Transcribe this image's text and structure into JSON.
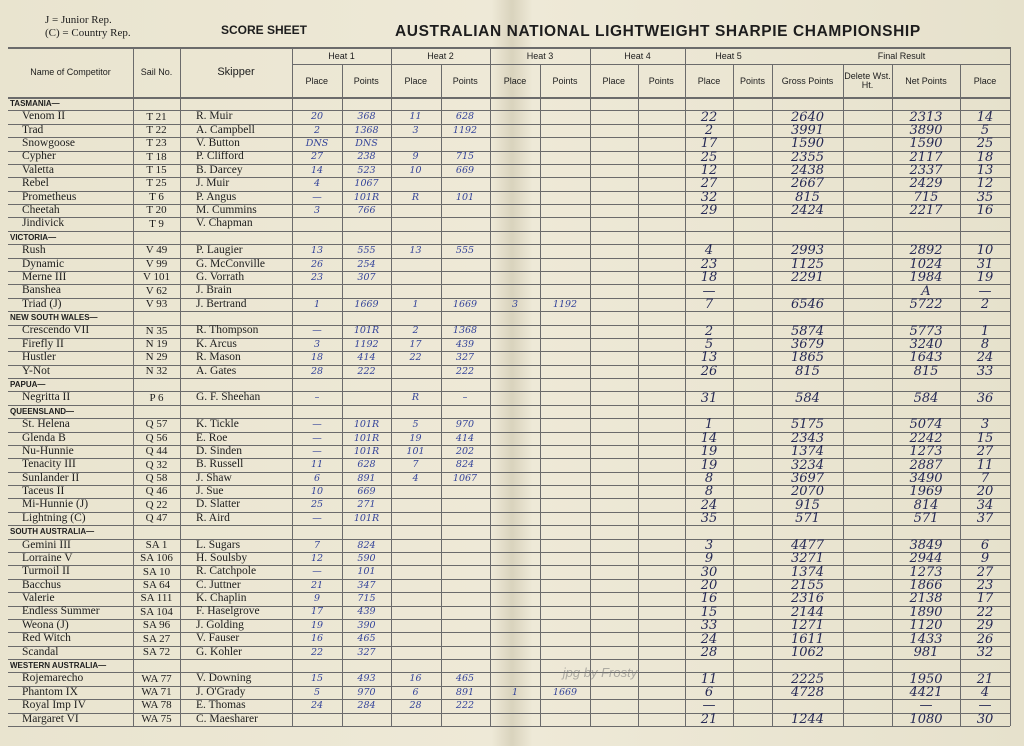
{
  "header": {
    "legend_junior": "J = Junior Rep.",
    "legend_country": "(C) = Country Rep.",
    "label": "SCORE SHEET",
    "title": "AUSTRALIAN NATIONAL LIGHTWEIGHT SHARPIE CHAMPIONSHIP"
  },
  "columns": {
    "name": "Name of Competitor",
    "sail": "Sail No.",
    "skipper": "Skipper",
    "heats": [
      {
        "name": "Heat 1",
        "place": "Place",
        "points": "Points"
      },
      {
        "name": "Heat 2",
        "place": "Place",
        "points": "Points"
      },
      {
        "name": "Heat 3",
        "place": "Place",
        "points": "Points"
      },
      {
        "name": "Heat 4",
        "place": "Place",
        "points": "Points"
      },
      {
        "name": "Heat 5",
        "place": "Place",
        "points": "Points"
      }
    ],
    "final": {
      "title": "Final Result",
      "gross": "Gross Points",
      "delete": "Delete Wst. Ht.",
      "net": "Net Points",
      "place": "Place"
    }
  },
  "sections": [
    {
      "name": "TASMANIA—",
      "boats": [
        {
          "name": "Venom II",
          "sail": "T 21",
          "skipper": "R. Muir",
          "heat1_place": 20,
          "heat1_points": 368,
          "heat2_place": 11,
          "heat2_points": 628,
          "heat5_place": 22,
          "gross": 2640,
          "net": 2313,
          "place": 14
        },
        {
          "name": "Trad",
          "sail": "T 22",
          "skipper": "A. Campbell",
          "heat1_place": 2,
          "heat1_points": 1368,
          "heat2_place": 3,
          "heat2_points": 1192,
          "heat5_place": 2,
          "gross": 3991,
          "net": 3890,
          "place": 5
        },
        {
          "name": "Snowgoose",
          "sail": "T 23",
          "skipper": "V. Button",
          "heat1_place": "DNS",
          "heat1_points": "DNS",
          "heat5_place": 17,
          "gross": 1590,
          "net": 1590,
          "place": 25
        },
        {
          "name": "Cypher",
          "sail": "T 18",
          "skipper": "P. Clifford",
          "heat1_place": 27,
          "heat1_points": 238,
          "heat2_place": 9,
          "heat2_points": 715,
          "heat5_place": 25,
          "gross": 2355,
          "net": 2117,
          "place": 18
        },
        {
          "name": "Valetta",
          "sail": "T 15",
          "skipper": "B. Darcey",
          "heat1_place": 14,
          "heat1_points": 523,
          "heat2_place": 10,
          "heat2_points": 669,
          "heat5_place": 12,
          "gross": 2438,
          "net": 2337,
          "place": 13
        },
        {
          "name": "Rebel",
          "sail": "T 25",
          "skipper": "J. Muir",
          "heat1_place": 4,
          "heat1_points": 1067,
          "heat5_place": 27,
          "gross": 2667,
          "net": 2429,
          "place": 12
        },
        {
          "name": "Prometheus",
          "sail": "T 6",
          "skipper": "P. Angus",
          "heat1_place": "—",
          "heat1_points": "101R",
          "heat2_place": "R",
          "heat2_points": 101,
          "heat5_place": 32,
          "gross": 815,
          "net": 715,
          "place": 35
        },
        {
          "name": "Cheetah",
          "sail": "T 20",
          "skipper": "M. Cummins",
          "heat1_place": 3,
          "heat1_points": 766,
          "heat5_place": 29,
          "gross": 2424,
          "net": 2217,
          "place": 16
        },
        {
          "name": "Jindivick",
          "sail": "T 9",
          "skipper": "V. Chapman"
        }
      ]
    },
    {
      "name": "VICTORIA—",
      "boats": [
        {
          "name": "Rush",
          "sail": "V 49",
          "skipper": "P. Laugier",
          "heat1_place": 13,
          "heat1_points": 555,
          "heat2_place": 13,
          "heat2_points": 555,
          "heat5_place": 4,
          "gross": 2993,
          "net": 2892,
          "place": 10
        },
        {
          "name": "Dynamic",
          "sail": "V 99",
          "skipper": "G. McConville",
          "heat1_place": 26,
          "heat1_points": 254,
          "heat5_place": 23,
          "gross": 1125,
          "net": 1024,
          "place": 31
        },
        {
          "name": "Merne III",
          "sail": "V 101",
          "skipper": "G. Vorrath",
          "heat1_place": 23,
          "heat1_points": 307,
          "heat5_place": 18,
          "gross": 2291,
          "net": 1984,
          "place": 19
        },
        {
          "name": "Banshea",
          "sail": "V 62",
          "skipper": "J. Brain",
          "heat5_place": "—",
          "net": "A",
          "place": "—"
        },
        {
          "name": "Triad (J)",
          "sail": "V 93",
          "skipper": "J. Bertrand",
          "heat1_place": 1,
          "heat1_points": 1669,
          "heat2_place": 1,
          "heat2_points": 1669,
          "heat3_place": 3,
          "heat3_points": 1192,
          "heat5_place": 7,
          "gross": 6546,
          "net": 5722,
          "place": 2
        }
      ]
    },
    {
      "name": "NEW SOUTH WALES—",
      "boats": [
        {
          "name": "Crescendo VII",
          "sail": "N 35",
          "skipper": "R. Thompson",
          "heat1_place": "—",
          "heat1_points": "101R",
          "heat2_place": 2,
          "heat2_points": 1368,
          "heat5_place": 2,
          "gross": 5874,
          "net": 5773,
          "place": 1
        },
        {
          "name": "Firefly II",
          "sail": "N 19",
          "skipper": "K. Arcus",
          "heat1_place": 3,
          "heat1_points": 1192,
          "heat2_place": 17,
          "heat2_points": 439,
          "heat5_place": 5,
          "gross": 3679,
          "net": 3240,
          "place": 8
        },
        {
          "name": "Hustler",
          "sail": "N 29",
          "skipper": "R. Mason",
          "heat1_place": 18,
          "heat1_points": 414,
          "heat2_place": 22,
          "heat2_points": 327,
          "heat5_place": 13,
          "gross": 1865,
          "net": 1643,
          "place": 24
        },
        {
          "name": "Y-Not",
          "sail": "N 32",
          "skipper": "A. Gates",
          "heat1_place": 28,
          "heat1_points": 222,
          "heat2_points": 222,
          "heat5_place": 26,
          "gross": 815,
          "net": 815,
          "place": 33
        }
      ]
    },
    {
      "name": "PAPUA—",
      "boats": [
        {
          "name": "Negritta II",
          "sail": "P 6",
          "skipper": "G. F. Sheehan",
          "heat1_place": "–",
          "heat2_place": "R",
          "heat2_points": "–",
          "heat5_place": 31,
          "gross": 584,
          "net": 584,
          "place": 36
        }
      ]
    },
    {
      "name": "QUEENSLAND—",
      "boats": [
        {
          "name": "St. Helena",
          "sail": "Q 57",
          "skipper": "K. Tickle",
          "heat1_place": "—",
          "heat1_points": "101R",
          "heat2_place": 5,
          "heat2_points": 970,
          "heat5_place": 1,
          "gross": 5175,
          "net": 5074,
          "place": 3
        },
        {
          "name": "Glenda B",
          "sail": "Q 56",
          "skipper": "E. Roe",
          "heat1_place": "—",
          "heat1_points": "101R",
          "heat2_place": 19,
          "heat2_points": 414,
          "heat5_place": 14,
          "gross": 2343,
          "net": 2242,
          "place": 15
        },
        {
          "name": "Nu-Hunnie",
          "sail": "Q 44",
          "skipper": "D. Sinden",
          "heat1_place": "—",
          "heat1_points": "101R",
          "heat2_place": 101,
          "heat2_points": 202,
          "heat5_place": 19,
          "gross": 1374,
          "net": 1273,
          "place": 27
        },
        {
          "name": "Tenacity III",
          "sail": "Q 32",
          "skipper": "B. Russell",
          "heat1_place": 11,
          "heat1_points": 628,
          "heat2_place": 7,
          "heat2_points": 824,
          "heat5_place": 19,
          "gross": 3234,
          "net": 2887,
          "place": 11
        },
        {
          "name": "Sunlander II",
          "sail": "Q 58",
          "skipper": "J. Shaw",
          "heat1_place": 6,
          "heat1_points": 891,
          "heat2_place": 4,
          "heat2_points": 1067,
          "heat5_place": 8,
          "gross": 3697,
          "net": 3490,
          "place": 7
        },
        {
          "name": "Taceus II",
          "sail": "Q 46",
          "skipper": "J. Sue",
          "heat1_place": 10,
          "heat1_points": 669,
          "heat5_place": 8,
          "gross": 2070,
          "net": 1969,
          "place": 20
        },
        {
          "name": "Mi-Hunnie (J)",
          "sail": "Q 22",
          "skipper": "D. Slatter",
          "heat1_place": 25,
          "heat1_points": 271,
          "heat5_place": 24,
          "gross": 915,
          "net": 814,
          "place": 34
        },
        {
          "name": "Lightning (C)",
          "sail": "Q 47",
          "skipper": "R. Aird",
          "heat1_place": "—",
          "heat1_points": "101R",
          "heat5_place": 35,
          "gross": 571,
          "net": 571,
          "place": 37
        }
      ]
    },
    {
      "name": "SOUTH AUSTRALIA—",
      "boats": [
        {
          "name": "Gemini III",
          "sail": "SA 1",
          "skipper": "L. Sugars",
          "heat1_place": 7,
          "heat1_points": 824,
          "heat5_place": 3,
          "gross": 4477,
          "net": 3849,
          "place": 6
        },
        {
          "name": "Lorraine V",
          "sail": "SA 106",
          "skipper": "H. Soulsby",
          "heat1_place": 12,
          "heat1_points": 590,
          "heat5_place": 9,
          "gross": 3271,
          "net": 2944,
          "place": 9
        },
        {
          "name": "Turmoil II",
          "sail": "SA 10",
          "skipper": "R. Catchpole",
          "heat1_place": "—",
          "heat1_points": 101,
          "heat5_place": 30,
          "gross": 1374,
          "net": 1273,
          "place": 27
        },
        {
          "name": "Bacchus",
          "sail": "SA 64",
          "skipper": "C. Juttner",
          "heat1_place": 21,
          "heat1_points": 347,
          "heat5_place": 20,
          "gross": 2155,
          "net": 1866,
          "place": 23
        },
        {
          "name": "Valerie",
          "sail": "SA 111",
          "skipper": "K. Chaplin",
          "heat1_place": 9,
          "heat1_points": 715,
          "heat5_place": 16,
          "gross": 2316,
          "net": 2138,
          "place": 17
        },
        {
          "name": "Endless Summer",
          "sail": "SA 104",
          "skipper": "F. Haselgrove",
          "heat1_place": 17,
          "heat1_points": 439,
          "heat5_place": 15,
          "gross": 2144,
          "net": 1890,
          "place": 22
        },
        {
          "name": "Weona (J)",
          "sail": "SA 96",
          "skipper": "J. Golding",
          "heat1_place": 19,
          "heat1_points": 390,
          "heat5_place": 33,
          "gross": 1271,
          "net": 1120,
          "place": 29
        },
        {
          "name": "Red Witch",
          "sail": "SA 27",
          "skipper": "V. Fauser",
          "heat1_place": 16,
          "heat1_points": 465,
          "heat5_place": 24,
          "gross": 1611,
          "net": 1433,
          "place": 26
        },
        {
          "name": "Scandal",
          "sail": "SA 72",
          "skipper": "G. Kohler",
          "heat1_place": 22,
          "heat1_points": 327,
          "heat5_place": 28,
          "gross": 1062,
          "net": 981,
          "place": 32
        }
      ]
    },
    {
      "name": "WESTERN AUSTRALIA—",
      "boats": [
        {
          "name": "Rojemarecho",
          "sail": "WA 77",
          "skipper": "V. Downing",
          "heat1_place": 15,
          "heat1_points": 493,
          "heat2_place": 16,
          "heat2_points": 465,
          "heat5_place": 11,
          "gross": 2225,
          "net": 1950,
          "place": 21
        },
        {
          "name": "Phantom IX",
          "sail": "WA 71",
          "skipper": "J. O'Grady",
          "heat1_place": 5,
          "heat1_points": 970,
          "heat2_place": 6,
          "heat2_points": 891,
          "heat3_place": 1,
          "heat3_points": 1669,
          "heat5_place": 6,
          "gross": 4728,
          "net": 4421,
          "place": 4
        },
        {
          "name": "Royal Imp IV",
          "sail": "WA 78",
          "skipper": "E. Thomas",
          "heat1_place": 24,
          "heat1_points": 284,
          "heat2_place": 28,
          "heat2_points": 222,
          "heat5_place": "—",
          "net": "—",
          "place": "—"
        },
        {
          "name": "Margaret VI",
          "sail": "WA 75",
          "skipper": "C. Maesharer",
          "heat5_place": 21,
          "gross": 1244,
          "net": 1080,
          "place": 30
        }
      ]
    }
  ],
  "watermark": "jpg by Frosty"
}
